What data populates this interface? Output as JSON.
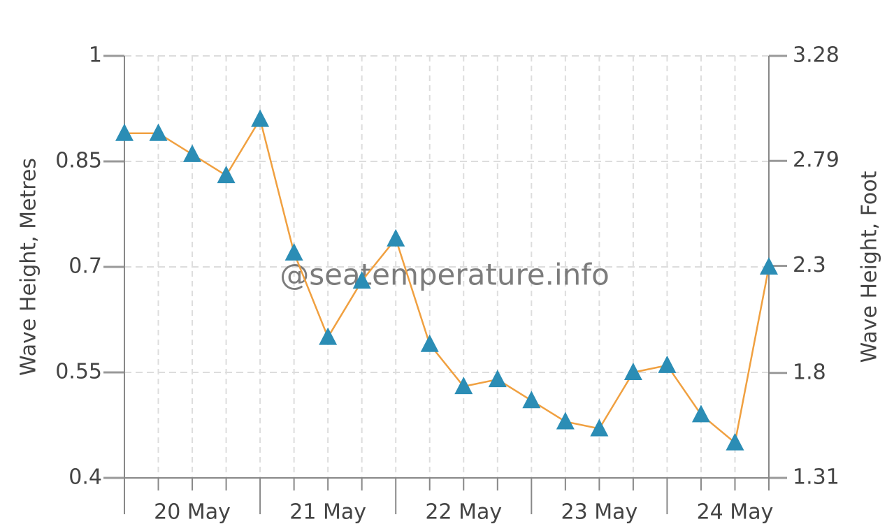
{
  "chart_data": {
    "type": "line",
    "categories": [
      null,
      null,
      "20 May",
      null,
      null,
      null,
      "21 May",
      null,
      null,
      null,
      "22 May",
      null,
      null,
      null,
      "23 May",
      null,
      null,
      null,
      "24 May",
      null
    ],
    "series": [
      {
        "name": "Wave Height",
        "color": "#f0a040",
        "marker_color": "#2b8db5",
        "values": [
          0.89,
          0.89,
          0.86,
          0.83,
          0.91,
          0.72,
          0.6,
          0.68,
          0.74,
          0.59,
          0.53,
          0.54,
          0.51,
          0.48,
          0.47,
          0.55,
          0.56,
          0.49,
          0.45,
          0.7
        ]
      }
    ],
    "ylabel": "Wave Height, Metres",
    "y2label": "Wave Height, Foot",
    "ylim": [
      0.4,
      1
    ],
    "yticks": [
      0.4,
      0.55,
      0.7,
      0.85,
      1
    ],
    "y2lim": [
      1.31,
      3.28
    ],
    "y2ticks": [
      1.31,
      1.8,
      2.3,
      2.79,
      3.28
    ],
    "watermark": "@seatemperature.info",
    "grid": true
  }
}
